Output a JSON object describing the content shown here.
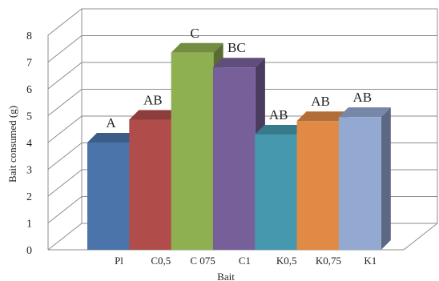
{
  "chart_data": {
    "type": "bar",
    "style": "3d-clustered-column",
    "categories": [
      "Pl",
      "C0,5",
      "C 075",
      "C1",
      "K0,5",
      "K0,75",
      "K1"
    ],
    "values": [
      4.0,
      4.85,
      7.35,
      6.8,
      4.3,
      4.8,
      4.95
    ],
    "significance_labels": [
      "A",
      "AB",
      "C",
      "BC",
      "AB",
      "AB",
      "AB"
    ],
    "colors": [
      "#4a74aa",
      "#b04c4a",
      "#8fb051",
      "#77609a",
      "#4598ae",
      "#e08a45",
      "#93a9d1"
    ],
    "xlabel": "Bait",
    "ylabel": "Bait consumed (g)",
    "ylim": [
      0,
      8
    ],
    "yticks": [
      0,
      1,
      2,
      3,
      4,
      5,
      6,
      7,
      8
    ],
    "grid": true,
    "legend": "none"
  }
}
